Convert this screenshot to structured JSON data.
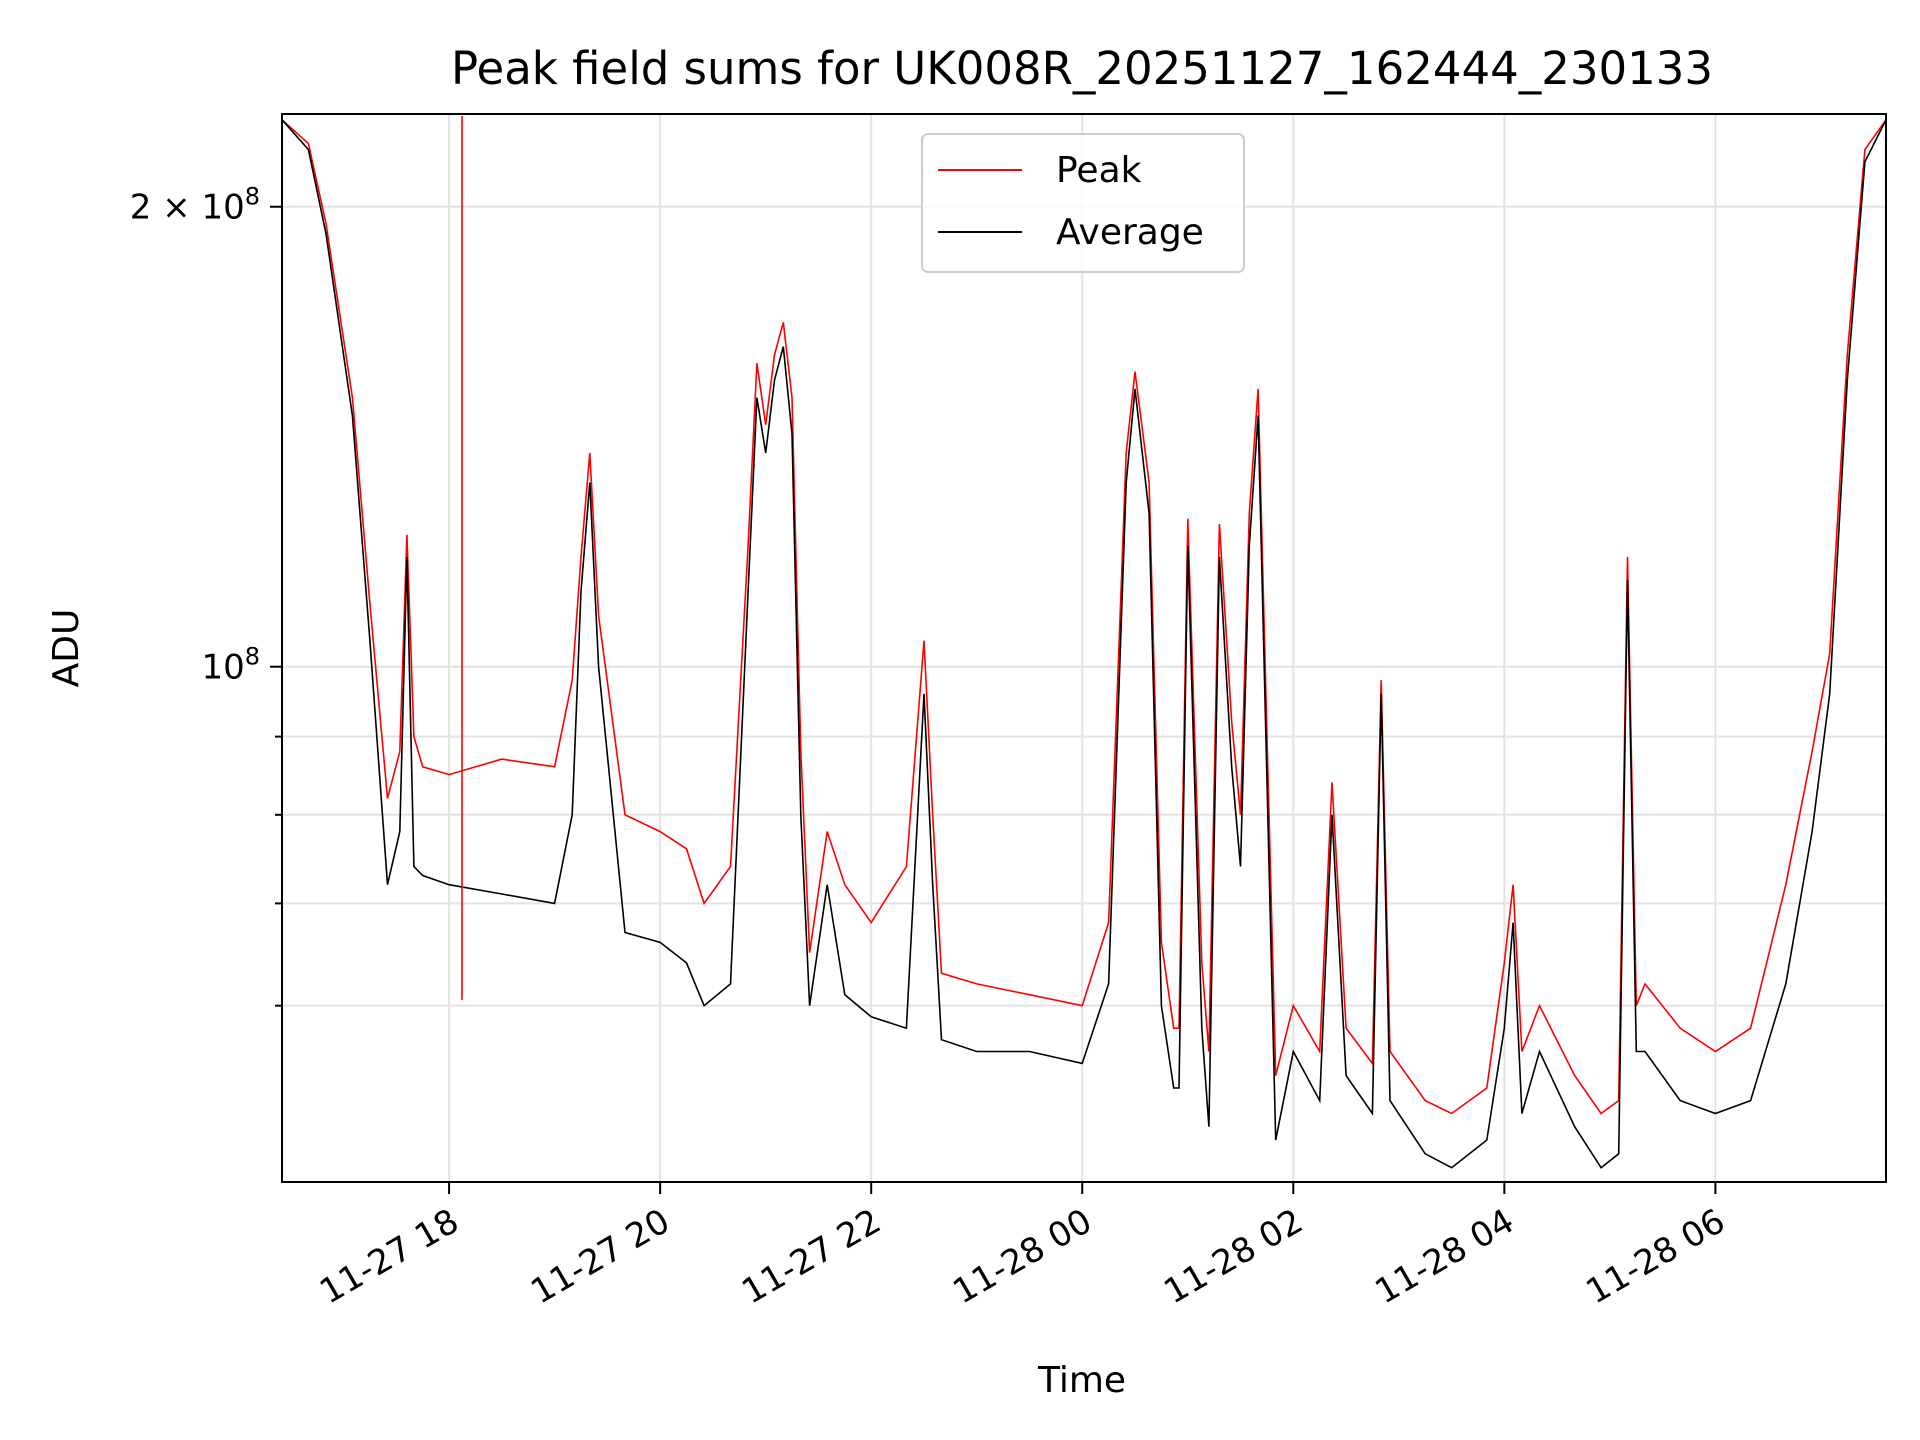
{
  "chart_data": {
    "type": "line",
    "title": "Peak field sums for UK008R_20251127_162444_230133",
    "xlabel": "Time",
    "ylabel": "ADU",
    "y_scale": "log",
    "grid": true,
    "legend_position": "upper-center",
    "xlim": [
      "2025-11-27 16:25",
      "2025-11-28 07:37"
    ],
    "ylim": [
      46000000,
      230000000
    ],
    "x_ticks": [
      "2025-11-27 18:00",
      "2025-11-27 20:00",
      "2025-11-27 22:00",
      "2025-11-28 00:00",
      "2025-11-28 02:00",
      "2025-11-28 04:00",
      "2025-11-28 06:00"
    ],
    "x_tick_labels": [
      "11-27 18",
      "11-27 20",
      "11-27 22",
      "11-28 00",
      "11-28 02",
      "11-28 04",
      "11-28 06"
    ],
    "y_major_ticks": [
      100000000,
      200000000
    ],
    "y_major_tick_labels": [
      {
        "base": "10",
        "exp": "8",
        "mult": ""
      },
      {
        "base": "10",
        "exp": "8",
        "mult": "2 × "
      }
    ],
    "y_minor_ticks": [
      60000000,
      70000000,
      80000000,
      90000000
    ],
    "series": [
      {
        "name": "Peak",
        "color": "#ff0000",
        "x": [
          "2025-11-27 16:25",
          "2025-11-27 16:40",
          "2025-11-27 16:50",
          "2025-11-27 17:05",
          "2025-11-27 17:15",
          "2025-11-27 17:25",
          "2025-11-27 17:32",
          "2025-11-27 17:36",
          "2025-11-27 17:40",
          "2025-11-27 17:45",
          "2025-11-27 18:00",
          "2025-11-27 18:30",
          "2025-11-27 19:00",
          "2025-11-27 19:10",
          "2025-11-27 19:15",
          "2025-11-27 19:20",
          "2025-11-27 19:25",
          "2025-11-27 19:40",
          "2025-11-27 20:00",
          "2025-11-27 20:15",
          "2025-11-27 20:25",
          "2025-11-27 20:40",
          "2025-11-27 20:50",
          "2025-11-27 20:55",
          "2025-11-27 21:00",
          "2025-11-27 21:05",
          "2025-11-27 21:10",
          "2025-11-27 21:15",
          "2025-11-27 21:20",
          "2025-11-27 21:25",
          "2025-11-27 21:35",
          "2025-11-27 21:45",
          "2025-11-27 22:00",
          "2025-11-27 22:20",
          "2025-11-27 22:30",
          "2025-11-27 22:35",
          "2025-11-27 22:40",
          "2025-11-27 23:00",
          "2025-11-27 23:30",
          "2025-11-28 00:00",
          "2025-11-28 00:15",
          "2025-11-28 00:25",
          "2025-11-28 00:30",
          "2025-11-28 00:38",
          "2025-11-28 00:45",
          "2025-11-28 00:52",
          "2025-11-28 00:55",
          "2025-11-28 01:00",
          "2025-11-28 01:08",
          "2025-11-28 01:12",
          "2025-11-28 01:18",
          "2025-11-28 01:25",
          "2025-11-28 01:30",
          "2025-11-28 01:35",
          "2025-11-28 01:40",
          "2025-11-28 01:50",
          "2025-11-28 02:00",
          "2025-11-28 02:15",
          "2025-11-28 02:22",
          "2025-11-28 02:30",
          "2025-11-28 02:45",
          "2025-11-28 02:50",
          "2025-11-28 02:55",
          "2025-11-28 03:15",
          "2025-11-28 03:30",
          "2025-11-28 03:50",
          "2025-11-28 04:00",
          "2025-11-28 04:05",
          "2025-11-28 04:10",
          "2025-11-28 04:20",
          "2025-11-28 04:40",
          "2025-11-28 04:55",
          "2025-11-28 05:05",
          "2025-11-28 05:10",
          "2025-11-28 05:15",
          "2025-11-28 05:20",
          "2025-11-28 05:40",
          "2025-11-28 06:00",
          "2025-11-28 06:20",
          "2025-11-28 06:40",
          "2025-11-28 06:55",
          "2025-11-28 07:05",
          "2025-11-28 07:15",
          "2025-11-28 07:25",
          "2025-11-28 07:37"
        ],
        "y": [
          228000000,
          220000000,
          195000000,
          150000000,
          110000000,
          82000000,
          88000000,
          122000000,
          90000000,
          86000000,
          85000000,
          87000000,
          86000000,
          98000000,
          118000000,
          138000000,
          108000000,
          80000000,
          78000000,
          76000000,
          70000000,
          74000000,
          120000000,
          158000000,
          144000000,
          160000000,
          168000000,
          150000000,
          88000000,
          65000000,
          78000000,
          72000000,
          68000000,
          74000000,
          104000000,
          80000000,
          63000000,
          62000000,
          61000000,
          60000000,
          68000000,
          138000000,
          156000000,
          132000000,
          66000000,
          58000000,
          58000000,
          125000000,
          64000000,
          56000000,
          124000000,
          92000000,
          80000000,
          126000000,
          152000000,
          54000000,
          60000000,
          56000000,
          84000000,
          58000000,
          55000000,
          98000000,
          56000000,
          52000000,
          51000000,
          53000000,
          64000000,
          72000000,
          56000000,
          60000000,
          54000000,
          51000000,
          52000000,
          118000000,
          60000000,
          62000000,
          58000000,
          56000000,
          58000000,
          72000000,
          88000000,
          102000000,
          160000000,
          218000000,
          228000000
        ]
      },
      {
        "name": "Average",
        "color": "#000000",
        "x": [
          "2025-11-27 16:25",
          "2025-11-27 16:40",
          "2025-11-27 16:50",
          "2025-11-27 17:05",
          "2025-11-27 17:15",
          "2025-11-27 17:25",
          "2025-11-27 17:32",
          "2025-11-27 17:36",
          "2025-11-27 17:40",
          "2025-11-27 17:45",
          "2025-11-27 18:00",
          "2025-11-27 18:30",
          "2025-11-27 19:00",
          "2025-11-27 19:10",
          "2025-11-27 19:15",
          "2025-11-27 19:20",
          "2025-11-27 19:25",
          "2025-11-27 19:40",
          "2025-11-27 20:00",
          "2025-11-27 20:15",
          "2025-11-27 20:25",
          "2025-11-27 20:40",
          "2025-11-27 20:50",
          "2025-11-27 20:55",
          "2025-11-27 21:00",
          "2025-11-27 21:05",
          "2025-11-27 21:10",
          "2025-11-27 21:15",
          "2025-11-27 21:20",
          "2025-11-27 21:25",
          "2025-11-27 21:35",
          "2025-11-27 21:45",
          "2025-11-27 22:00",
          "2025-11-27 22:20",
          "2025-11-27 22:30",
          "2025-11-27 22:35",
          "2025-11-27 22:40",
          "2025-11-27 23:00",
          "2025-11-27 23:30",
          "2025-11-28 00:00",
          "2025-11-28 00:15",
          "2025-11-28 00:25",
          "2025-11-28 00:30",
          "2025-11-28 00:38",
          "2025-11-28 00:45",
          "2025-11-28 00:52",
          "2025-11-28 00:55",
          "2025-11-28 01:00",
          "2025-11-28 01:08",
          "2025-11-28 01:12",
          "2025-11-28 01:18",
          "2025-11-28 01:25",
          "2025-11-28 01:30",
          "2025-11-28 01:35",
          "2025-11-28 01:40",
          "2025-11-28 01:50",
          "2025-11-28 02:00",
          "2025-11-28 02:15",
          "2025-11-28 02:22",
          "2025-11-28 02:30",
          "2025-11-28 02:45",
          "2025-11-28 02:50",
          "2025-11-28 02:55",
          "2025-11-28 03:15",
          "2025-11-28 03:30",
          "2025-11-28 03:50",
          "2025-11-28 04:00",
          "2025-11-28 04:05",
          "2025-11-28 04:10",
          "2025-11-28 04:20",
          "2025-11-28 04:40",
          "2025-11-28 04:55",
          "2025-11-28 05:05",
          "2025-11-28 05:10",
          "2025-11-28 05:15",
          "2025-11-28 05:20",
          "2025-11-28 05:40",
          "2025-11-28 06:00",
          "2025-11-28 06:20",
          "2025-11-28 06:40",
          "2025-11-28 06:55",
          "2025-11-28 07:05",
          "2025-11-28 07:15",
          "2025-11-28 07:25",
          "2025-11-28 07:37"
        ],
        "y": [
          228000000,
          218000000,
          192000000,
          146000000,
          104000000,
          72000000,
          78000000,
          118000000,
          74000000,
          73000000,
          72000000,
          71000000,
          70000000,
          80000000,
          112000000,
          132000000,
          100000000,
          67000000,
          66000000,
          64000000,
          60000000,
          62000000,
          112000000,
          150000000,
          138000000,
          154000000,
          162000000,
          142000000,
          80000000,
          60000000,
          72000000,
          61000000,
          59000000,
          58000000,
          96000000,
          72000000,
          57000000,
          56000000,
          56000000,
          55000000,
          62000000,
          132000000,
          152000000,
          126000000,
          60000000,
          53000000,
          53000000,
          120000000,
          58000000,
          50000000,
          118000000,
          86000000,
          74000000,
          120000000,
          146000000,
          49000000,
          56000000,
          52000000,
          80000000,
          54000000,
          51000000,
          96000000,
          52000000,
          48000000,
          47000000,
          49000000,
          58000000,
          68000000,
          51000000,
          56000000,
          50000000,
          47000000,
          48000000,
          114000000,
          56000000,
          56000000,
          52000000,
          51000000,
          52000000,
          62000000,
          78000000,
          96000000,
          154000000,
          214000000,
          228000000
        ]
      }
    ]
  }
}
